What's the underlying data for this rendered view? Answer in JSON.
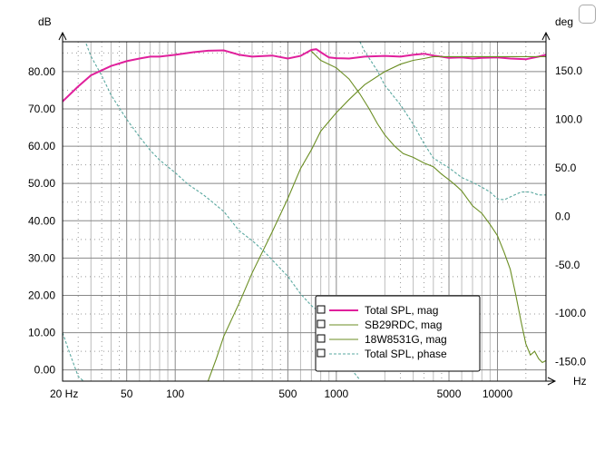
{
  "chart_data": {
    "type": "line",
    "xscale": "log",
    "xlim": [
      20,
      20000
    ],
    "ylim": [
      -3,
      88
    ],
    "y2lim": [
      -170,
      180
    ],
    "grid": true,
    "legend_position": "bottom-right",
    "xunit": "Hz",
    "yunit": "dB",
    "y2unit": "deg",
    "x_ticks": [
      {
        "value": 20,
        "label": "20 Hz"
      },
      {
        "value": 50,
        "label": "50"
      },
      {
        "value": 100,
        "label": "100"
      },
      {
        "value": 500,
        "label": "500"
      },
      {
        "value": 1000,
        "label": "1000"
      },
      {
        "value": 5000,
        "label": "5000"
      },
      {
        "value": 10000,
        "label": "10000"
      }
    ],
    "y_ticks": [
      {
        "value": 0,
        "label": "0.00"
      },
      {
        "value": 10,
        "label": "10.00"
      },
      {
        "value": 20,
        "label": "20.00"
      },
      {
        "value": 30,
        "label": "30.00"
      },
      {
        "value": 40,
        "label": "40.00"
      },
      {
        "value": 50,
        "label": "50.00"
      },
      {
        "value": 60,
        "label": "60.00"
      },
      {
        "value": 70,
        "label": "70.00"
      },
      {
        "value": 80,
        "label": "80.00"
      }
    ],
    "y2_ticks": [
      {
        "value": 150,
        "label": "150.0"
      },
      {
        "value": 100,
        "label": "100.0"
      },
      {
        "value": 50,
        "label": "50.0"
      },
      {
        "value": 0,
        "label": "0.0"
      },
      {
        "value": -50,
        "label": "-50.0"
      },
      {
        "value": -100,
        "label": "-100.0"
      },
      {
        "value": -150,
        "label": "-150.0"
      }
    ],
    "series": [
      {
        "name": "Total SPL, mag",
        "axis": "left",
        "color": "#e0209c",
        "style": "solid",
        "x": [
          20,
          25,
          30,
          40,
          50,
          60,
          70,
          80,
          100,
          130,
          160,
          200,
          250,
          300,
          400,
          500,
          600,
          700,
          750,
          800,
          900,
          1000,
          1200,
          1500,
          2000,
          2500,
          3000,
          3500,
          4000,
          5000,
          6000,
          7000,
          8000,
          10000,
          12000,
          15000,
          18000,
          20000
        ],
        "y": [
          72,
          76,
          79,
          81.5,
          82.8,
          83.5,
          84,
          84,
          84.5,
          85.2,
          85.6,
          85.7,
          84.5,
          84,
          84.3,
          83.5,
          84.2,
          85.8,
          86,
          85.2,
          83.8,
          83.6,
          83.5,
          84,
          84.2,
          84,
          84.5,
          84.8,
          84.3,
          83.7,
          83.8,
          83.5,
          83.7,
          83.8,
          83.5,
          83.3,
          84,
          84.5
        ]
      },
      {
        "name": "SB29RDC, mag",
        "axis": "left",
        "color": "#6b8e23",
        "style": "solid",
        "x": [
          700,
          800,
          1000,
          1200,
          1400,
          1600,
          1800,
          2000,
          2300,
          2600,
          3000,
          3500,
          4000,
          4500,
          5000,
          5500,
          6000,
          7000,
          8000,
          9000,
          10000,
          11000,
          12000,
          13000,
          14000,
          15000,
          16000,
          17000,
          18000,
          19000,
          20000
        ],
        "y": [
          85.5,
          83,
          81,
          78,
          74,
          70,
          66,
          63,
          60,
          58,
          57,
          55.5,
          54.5,
          52.5,
          51,
          49.5,
          48,
          44,
          42,
          39,
          36,
          31.5,
          27,
          20,
          13,
          7,
          4,
          5,
          3,
          2,
          2.5
        ]
      },
      {
        "name": "18W8531G, mag",
        "axis": "left",
        "color": "#6b8e23",
        "style": "solid",
        "x": [
          160,
          180,
          200,
          250,
          300,
          400,
          500,
          600,
          700,
          800,
          1000,
          1200,
          1500,
          2000,
          2500,
          3000,
          3500,
          4000,
          5000,
          6000,
          7000,
          8000,
          10000,
          12000,
          15000,
          20000
        ],
        "y": [
          -3,
          3,
          9,
          18,
          26,
          37,
          46,
          54,
          59,
          64,
          69,
          72.5,
          76.5,
          80,
          82,
          83,
          83.5,
          84,
          84,
          84,
          84,
          84,
          84,
          84,
          84,
          84
        ]
      },
      {
        "name": "Total SPL, phase",
        "axis": "right",
        "color": "#5aa8a0",
        "style": "dashed",
        "x": [
          20,
          22,
          25,
          27,
          28,
          30,
          35,
          40,
          50,
          60,
          70,
          80,
          100,
          120,
          150,
          200,
          250,
          300,
          350,
          400,
          500,
          600,
          700,
          800,
          900,
          1000,
          1200,
          1390,
          1400,
          1420,
          1500,
          1800,
          2000,
          2500,
          3000,
          3500,
          4000,
          5000,
          6000,
          7000,
          8000,
          9000,
          10000,
          11000,
          12000,
          14000,
          16000,
          18000,
          20000
        ],
        "y": [
          -120,
          -140,
          -165,
          -170,
          178,
          165,
          145,
          125,
          100,
          82,
          68,
          58,
          45,
          33,
          22,
          5,
          -15,
          -25,
          -35,
          -45,
          -62,
          -80,
          -92,
          -100,
          -120,
          -135,
          -155,
          -168,
          180,
          178,
          170,
          150,
          135,
          115,
          95,
          75,
          60,
          50,
          40,
          35,
          30,
          25,
          18,
          17,
          20,
          25,
          25,
          22,
          22
        ]
      }
    ]
  }
}
